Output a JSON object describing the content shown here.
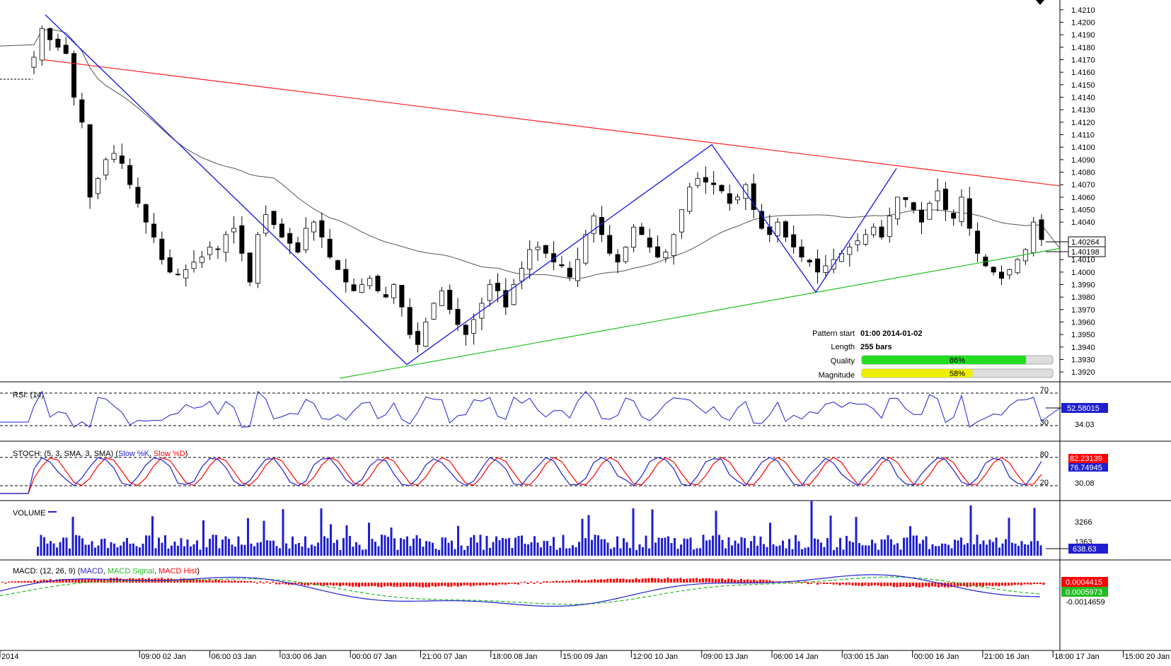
{
  "price_axis": {
    "ticks": [
      "1.4210",
      "1.4200",
      "1.4190",
      "1.4180",
      "1.4170",
      "1.4160",
      "1.4150",
      "1.4140",
      "1.4130",
      "1.4120",
      "1.4110",
      "1.4100",
      "1.4090",
      "1.4080",
      "1.4070",
      "1.4060",
      "1.4050",
      "1.4040",
      "1.4010",
      "1.4000",
      "1.3990",
      "1.3980",
      "1.3970",
      "1.3960",
      "1.3950",
      "1.3940",
      "1.3930",
      "1.3920"
    ],
    "last_price": "1.40264",
    "ma_value": "1.40198"
  },
  "pattern_info": {
    "start_label": "Pattern start",
    "start_value": "01:00 2014-01-02",
    "length_label": "Length",
    "length_value": "255 bars",
    "quality_label": "Quality",
    "quality_value": "86%",
    "quality_fraction": 0.86,
    "magnitude_label": "Magnitude",
    "magnitude_value": "58%",
    "magnitude_fraction": 0.58
  },
  "rsi": {
    "title": "RSI: (14)",
    "levels": [
      "70",
      "30"
    ],
    "value": "52.58015",
    "extra": "34.03"
  },
  "stoch": {
    "title_prefix": "STOCH: (5, 3, SMA, 3, SMA) (",
    "k_label": "Slow %K",
    "sep": ", ",
    "d_label": "Slow %D",
    "title_suffix": ")",
    "levels": [
      "80",
      "20"
    ],
    "value_k": "82.23139",
    "value_d": "76.74945",
    "extra": "30.08"
  },
  "volume": {
    "title": "VOLUME",
    "ticks": [
      "3266",
      "1363"
    ],
    "value": "638.63"
  },
  "macd": {
    "title_prefix": "MACD: (12, 26, 9) (",
    "macd_label": "MACD",
    "sep": ", ",
    "signal_label": "MACD Signal",
    "hist_label": "MACD Hist",
    "title_suffix": ")",
    "value_main": "0.0004415",
    "value_signal": "0.0005973",
    "value_low": "-0.0014659"
  },
  "time_axis": [
    "2014",
    "09:00 02 Jan",
    "06:00 03 Jan",
    "03:00 06 Jan",
    "00:00 07 Jan",
    "21:00 07 Jan",
    "18:00 08 Jan",
    "15:00 09 Jan",
    "12:00 10 Jan",
    "09:00 13 Jan",
    "06:00 14 Jan",
    "03:00 15 Jan",
    "00:00 16 Jan",
    "21:00 16 Jan",
    "18:00 17 Jan",
    "15:00 20 Jan"
  ],
  "colors": {
    "up": "#ffffff",
    "down": "#000000",
    "pattern": "#2020e0",
    "resistance": "#ff2020",
    "support": "#20c020",
    "ma": "#555555",
    "rsi": "#1f1fd0",
    "stoch_k": "#1f1fd0",
    "stoch_d": "#ff0000",
    "volume": "#1f1fd0",
    "macd": "#1f1fd0",
    "macd_signal": "#22bb22",
    "macd_hist": "#ff0000",
    "quality": "#22dd22",
    "magnitude": "#eeee00"
  },
  "chart_data": {
    "type": "candlestick",
    "instrument_note": "",
    "ylim": [
      1.3915,
      1.4215
    ],
    "pattern_points": [
      {
        "x": "01:00 02 Jan",
        "price": 1.4206
      },
      {
        "x": "low 08 Jan",
        "price": 1.3926
      },
      {
        "x": "high 14 Jan",
        "price": 1.4102
      },
      {
        "x": "low 15 Jan",
        "price": 1.3984
      },
      {
        "x": "high 16 Jan",
        "price": 1.4083
      }
    ],
    "resistance_line": {
      "from": 1.417,
      "to": 1.4069
    },
    "support_line": {
      "from": 1.3915,
      "to": 1.4019
    },
    "series": [
      {
        "close": [
          1.4172,
          1.4195,
          1.4186,
          1.418,
          1.4175,
          1.414,
          1.412,
          1.406,
          1.4075,
          1.409,
          1.4095,
          1.4087,
          1.407,
          1.4055,
          1.404,
          1.4028,
          1.401,
          1.4,
          1.3998,
          1.4002,
          1.4008,
          1.4012,
          1.402,
          1.4018,
          1.403,
          1.4035,
          1.4015,
          1.3992,
          1.403,
          1.4046,
          1.4038,
          1.4028,
          1.4023,
          1.4016,
          1.4035,
          1.404,
          1.4028,
          1.4012,
          1.4002,
          1.3992,
          1.3985,
          1.399,
          1.3995,
          1.3985,
          1.398,
          1.399,
          1.3972,
          1.395,
          1.3942,
          1.396,
          1.3975,
          1.3985,
          1.397,
          1.3958,
          1.395,
          1.3962,
          1.3975,
          1.399,
          1.3985,
          1.3972,
          1.399,
          1.4003,
          1.4018,
          1.402,
          1.4015,
          1.4008,
          1.4005,
          1.3996,
          1.401,
          1.403,
          1.4045,
          1.403,
          1.4015,
          1.4008,
          1.402,
          1.4036,
          1.403,
          1.402,
          1.4012,
          1.4016,
          1.403,
          1.405,
          1.4068,
          1.4075,
          1.4072,
          1.407,
          1.4065,
          1.4055,
          1.406,
          1.407,
          1.405,
          1.4035,
          1.403,
          1.404,
          1.4028,
          1.402,
          1.4012,
          1.4008,
          1.4,
          1.4005,
          1.401,
          1.4015,
          1.402,
          1.4025,
          1.403,
          1.4036,
          1.4028,
          1.4045,
          1.406,
          1.4058,
          1.405,
          1.404,
          1.4055,
          1.4065,
          1.405,
          1.4043,
          1.406,
          1.4035,
          1.4015,
          1.4005,
          1.4,
          1.3995,
          1.4002,
          1.401,
          1.4018,
          1.404,
          1.4026
        ]
      },
      {
        "name": "RSI",
        "note": ""
      }
    ]
  }
}
